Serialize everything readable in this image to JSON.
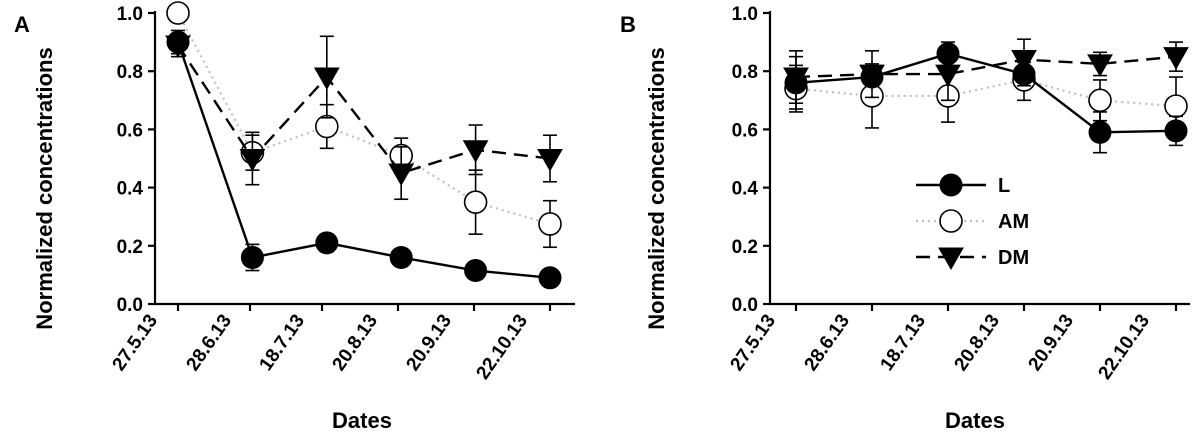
{
  "chart_data": [
    {
      "type": "line",
      "panel_label": "A",
      "xlabel": "Dates",
      "ylabel": "Normalized concentrations",
      "ylim": [
        0,
        1.0
      ],
      "yticks": [
        "0.0",
        "0.2",
        "0.4",
        "0.6",
        "0.8",
        "1.0"
      ],
      "xtick_labels": [
        "27.5.13",
        "28.6.13",
        "18.7.13",
        "20.8.13",
        "20.9.13",
        "22.10.13"
      ],
      "grid": false,
      "series": [
        {
          "name": "L",
          "marker": "filled-circle",
          "line": "solid",
          "values": [
            0.9,
            0.16,
            0.21,
            0.16,
            0.115,
            0.09
          ],
          "errors": [
            0.04,
            0.045,
            0.03,
            0.02,
            0.03,
            0.02
          ]
        },
        {
          "name": "AM",
          "marker": "open-circle",
          "line": "dotted",
          "values": [
            1.0,
            0.52,
            0.61,
            0.51,
            0.35,
            0.275
          ],
          "errors": [
            0.02,
            0.06,
            0.075,
            0.06,
            0.11,
            0.08
          ]
        },
        {
          "name": "DM",
          "marker": "filled-triangle-down",
          "line": "dashed",
          "values": [
            0.89,
            0.5,
            0.78,
            0.45,
            0.53,
            0.5
          ],
          "errors": [
            0.04,
            0.09,
            0.14,
            0.09,
            0.085,
            0.08
          ]
        }
      ]
    },
    {
      "type": "line",
      "panel_label": "B",
      "xlabel": "Dates",
      "ylabel": "Normalized concentrations",
      "ylim": [
        0,
        1.0
      ],
      "yticks": [
        "0.0",
        "0.2",
        "0.4",
        "0.6",
        "0.8",
        "1.0"
      ],
      "xtick_labels": [
        "27.5.13",
        "28.6.13",
        "18.7.13",
        "20.8.13",
        "20.9.13",
        "22.10.13"
      ],
      "grid": false,
      "legend": "center",
      "series": [
        {
          "name": "L",
          "marker": "filled-circle",
          "line": "solid",
          "values": [
            0.76,
            0.78,
            0.86,
            0.79,
            0.59,
            0.595
          ],
          "errors": [
            0.09,
            0.03,
            0.04,
            0.04,
            0.07,
            0.05
          ]
        },
        {
          "name": "AM",
          "marker": "open-circle",
          "line": "dotted",
          "values": [
            0.74,
            0.715,
            0.715,
            0.77,
            0.7,
            0.68
          ],
          "errors": [
            0.08,
            0.11,
            0.09,
            0.07,
            0.07,
            0.1
          ]
        },
        {
          "name": "DM",
          "marker": "filled-triangle-down",
          "line": "dashed",
          "values": [
            0.78,
            0.79,
            0.79,
            0.84,
            0.825,
            0.85
          ],
          "errors": [
            0.09,
            0.08,
            0.09,
            0.07,
            0.04,
            0.05
          ]
        }
      ]
    }
  ]
}
